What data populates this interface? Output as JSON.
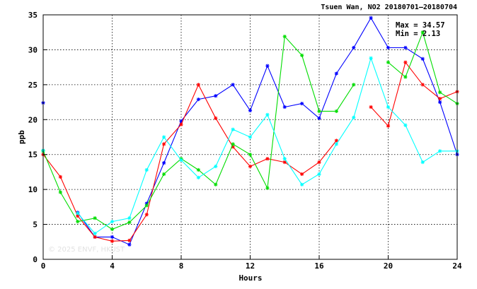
{
  "chart_data": {
    "type": "line",
    "title": "Tsuen Wan, NO2 20180701–20180704",
    "xlabel": "Hours",
    "ylabel": "ppb",
    "xlim": [
      0,
      24
    ],
    "ylim": [
      0,
      35
    ],
    "x_ticks": [
      "0",
      "4",
      "8",
      "12",
      "16",
      "20",
      "24"
    ],
    "y_ticks": [
      "0",
      "5",
      "10",
      "15",
      "20",
      "25",
      "30",
      "35"
    ],
    "grid": true,
    "stats": {
      "max_label": "Max = 34.57",
      "min_label": "Min =  2.13"
    },
    "watermark": "© 2025  ENVF, HKUST",
    "x": [
      0,
      1,
      2,
      3,
      4,
      5,
      6,
      7,
      8,
      9,
      10,
      11,
      12,
      13,
      14,
      15,
      16,
      17,
      18,
      19,
      20,
      21,
      22,
      23,
      24
    ],
    "series": [
      {
        "color": "#0000ff",
        "values": [
          22.4,
          null,
          6.7,
          3.2,
          3.2,
          2.1,
          8.0,
          13.8,
          19.8,
          22.9,
          23.4,
          25.0,
          21.3,
          27.7,
          21.8,
          22.3,
          20.2,
          26.6,
          30.3,
          34.57,
          30.3,
          30.3,
          28.7,
          22.5,
          15.0
        ]
      },
      {
        "color": "#ff0000",
        "values": [
          15.0,
          11.8,
          6.2,
          3.2,
          2.6,
          2.7,
          6.4,
          16.5,
          19.3,
          25.0,
          20.2,
          16.1,
          13.3,
          14.4,
          13.9,
          12.2,
          13.9,
          17.0,
          null,
          21.8,
          19.1,
          28.2,
          25.0,
          23.0,
          24.0
        ]
      },
      {
        "color": "#00dd00",
        "values": [
          15.5,
          9.6,
          5.4,
          5.9,
          4.3,
          5.3,
          7.7,
          12.2,
          14.4,
          12.8,
          10.7,
          16.5,
          15.0,
          10.2,
          31.9,
          29.2,
          21.2,
          21.2,
          25.0,
          null,
          28.2,
          26.1,
          32.5,
          23.9,
          22.3
        ]
      },
      {
        "color": "#00ffff",
        "values": [
          15.6,
          null,
          6.6,
          3.7,
          5.4,
          5.9,
          12.8,
          17.5,
          14.2,
          11.7,
          13.3,
          18.6,
          17.5,
          20.7,
          14.4,
          10.7,
          12.2,
          16.5,
          20.3,
          28.8,
          21.8,
          19.2,
          13.9,
          15.5,
          15.5
        ]
      }
    ]
  }
}
